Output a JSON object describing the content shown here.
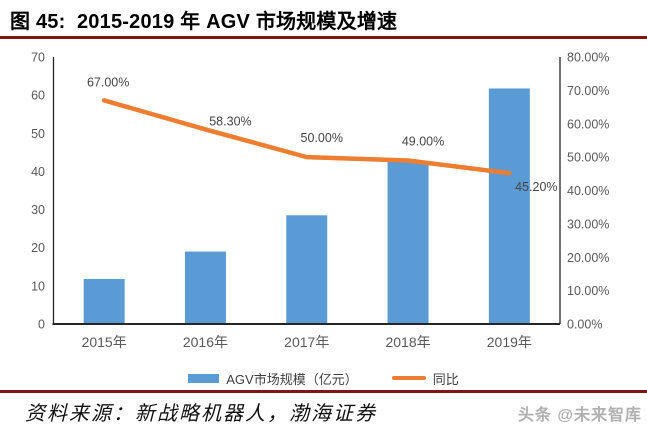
{
  "header": {
    "title": "图 45:  2015-2019 年 AGV 市场规模及增速"
  },
  "colors": {
    "bar": "#5B9BD5",
    "line": "#ED7D31",
    "divider": "#7E1517",
    "axis_text": "#595959",
    "label_text": "#444444"
  },
  "chart_data": {
    "type": "combo (bar + line)",
    "categories": [
      "2015年",
      "2016年",
      "2017年",
      "2018年",
      "2019年"
    ],
    "series": [
      {
        "name": "AGV市场规模（亿元）",
        "type": "bar",
        "axis": "left",
        "values": [
          11.8,
          19,
          28.5,
          42.5,
          61.75
        ]
      },
      {
        "name": "同比",
        "type": "line",
        "axis": "right",
        "values": [
          67.0,
          58.3,
          50.0,
          49.0,
          45.2
        ],
        "point_labels": [
          "67.00%",
          "58.30%",
          "50.00%",
          "49.00%",
          "45.20%"
        ]
      }
    ],
    "left_axis": {
      "min": 0,
      "max": 70,
      "step": 10,
      "ticks": [
        0,
        10,
        20,
        30,
        40,
        50,
        60,
        70
      ]
    },
    "right_axis": {
      "min": 0,
      "max": 80,
      "step": 10,
      "ticks": [
        "0.00%",
        "10.00%",
        "20.00%",
        "30.00%",
        "40.00%",
        "50.00%",
        "60.00%",
        "70.00%",
        "80.00%"
      ]
    },
    "legend": {
      "position": "bottom"
    },
    "grid": false
  },
  "footer": {
    "source": "资料来源：新战略机器人，渤海证券",
    "watermark": "头条 @未来智库"
  }
}
